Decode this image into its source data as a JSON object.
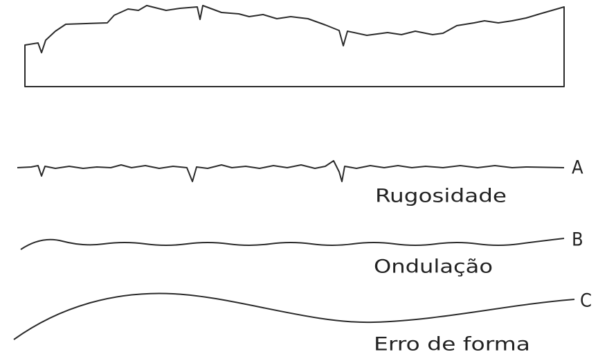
{
  "profiles": [
    {
      "letter": "A",
      "name": "Rugosidade"
    },
    {
      "letter": "B",
      "name": "Ondulação"
    },
    {
      "letter": "C",
      "name": "Erro de forma"
    }
  ]
}
